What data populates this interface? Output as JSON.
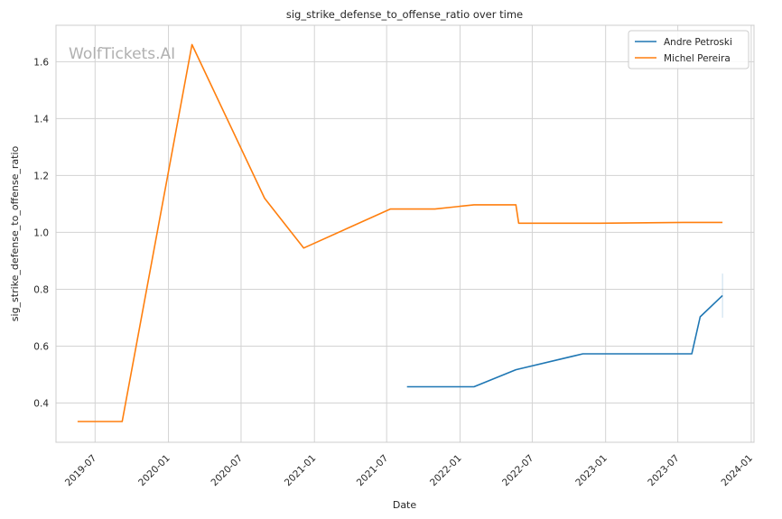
{
  "chart_data": {
    "type": "line",
    "title": "sig_strike_defense_to_offense_ratio over time",
    "xlabel": "Date",
    "ylabel": "sig_strike_defense_to_offense_ratio",
    "watermark": "WolfTickets.AI",
    "x_ticks": [
      "2019-07",
      "2020-01",
      "2020-07",
      "2021-01",
      "2021-07",
      "2022-01",
      "2022-07",
      "2023-01",
      "2023-07",
      "2024-01"
    ],
    "y_ticks": [
      "0.4",
      "0.6",
      "0.8",
      "1.0",
      "1.2",
      "1.4",
      "1.6"
    ],
    "xlim": [
      "2019-03-25",
      "2024-01-08"
    ],
    "ylim": [
      0.262,
      1.728
    ],
    "grid": true,
    "legend_position": "top-right",
    "series": [
      {
        "name": "Andre Petroski",
        "color": "#1f77b4",
        "points": [
          {
            "x": "2021-08-21",
            "y": 0.457
          },
          {
            "x": "2022-02-05",
            "y": 0.457
          },
          {
            "x": "2022-05-21",
            "y": 0.517
          },
          {
            "x": "2022-11-05",
            "y": 0.573
          },
          {
            "x": "2023-08-05",
            "y": 0.573
          },
          {
            "x": "2023-08-26",
            "y": 0.703
          },
          {
            "x": "2023-10-21",
            "y": 0.778
          }
        ],
        "error_bar": {
          "x": "2023-10-21",
          "low": 0.7,
          "high": 0.855
        }
      },
      {
        "name": "Michel Pereira",
        "color": "#ff7f0e",
        "points": [
          {
            "x": "2019-05-18",
            "y": 0.335
          },
          {
            "x": "2019-09-07",
            "y": 0.335
          },
          {
            "x": "2020-02-29",
            "y": 1.66
          },
          {
            "x": "2020-08-29",
            "y": 1.12
          },
          {
            "x": "2020-12-05",
            "y": 0.945
          },
          {
            "x": "2021-07-10",
            "y": 1.082
          },
          {
            "x": "2021-10-30",
            "y": 1.082
          },
          {
            "x": "2022-02-05",
            "y": 1.097
          },
          {
            "x": "2022-05-21",
            "y": 1.097
          },
          {
            "x": "2022-05-28",
            "y": 1.032
          },
          {
            "x": "2022-12-17",
            "y": 1.032
          },
          {
            "x": "2023-07-15",
            "y": 1.035
          },
          {
            "x": "2023-10-21",
            "y": 1.035
          }
        ]
      }
    ]
  }
}
